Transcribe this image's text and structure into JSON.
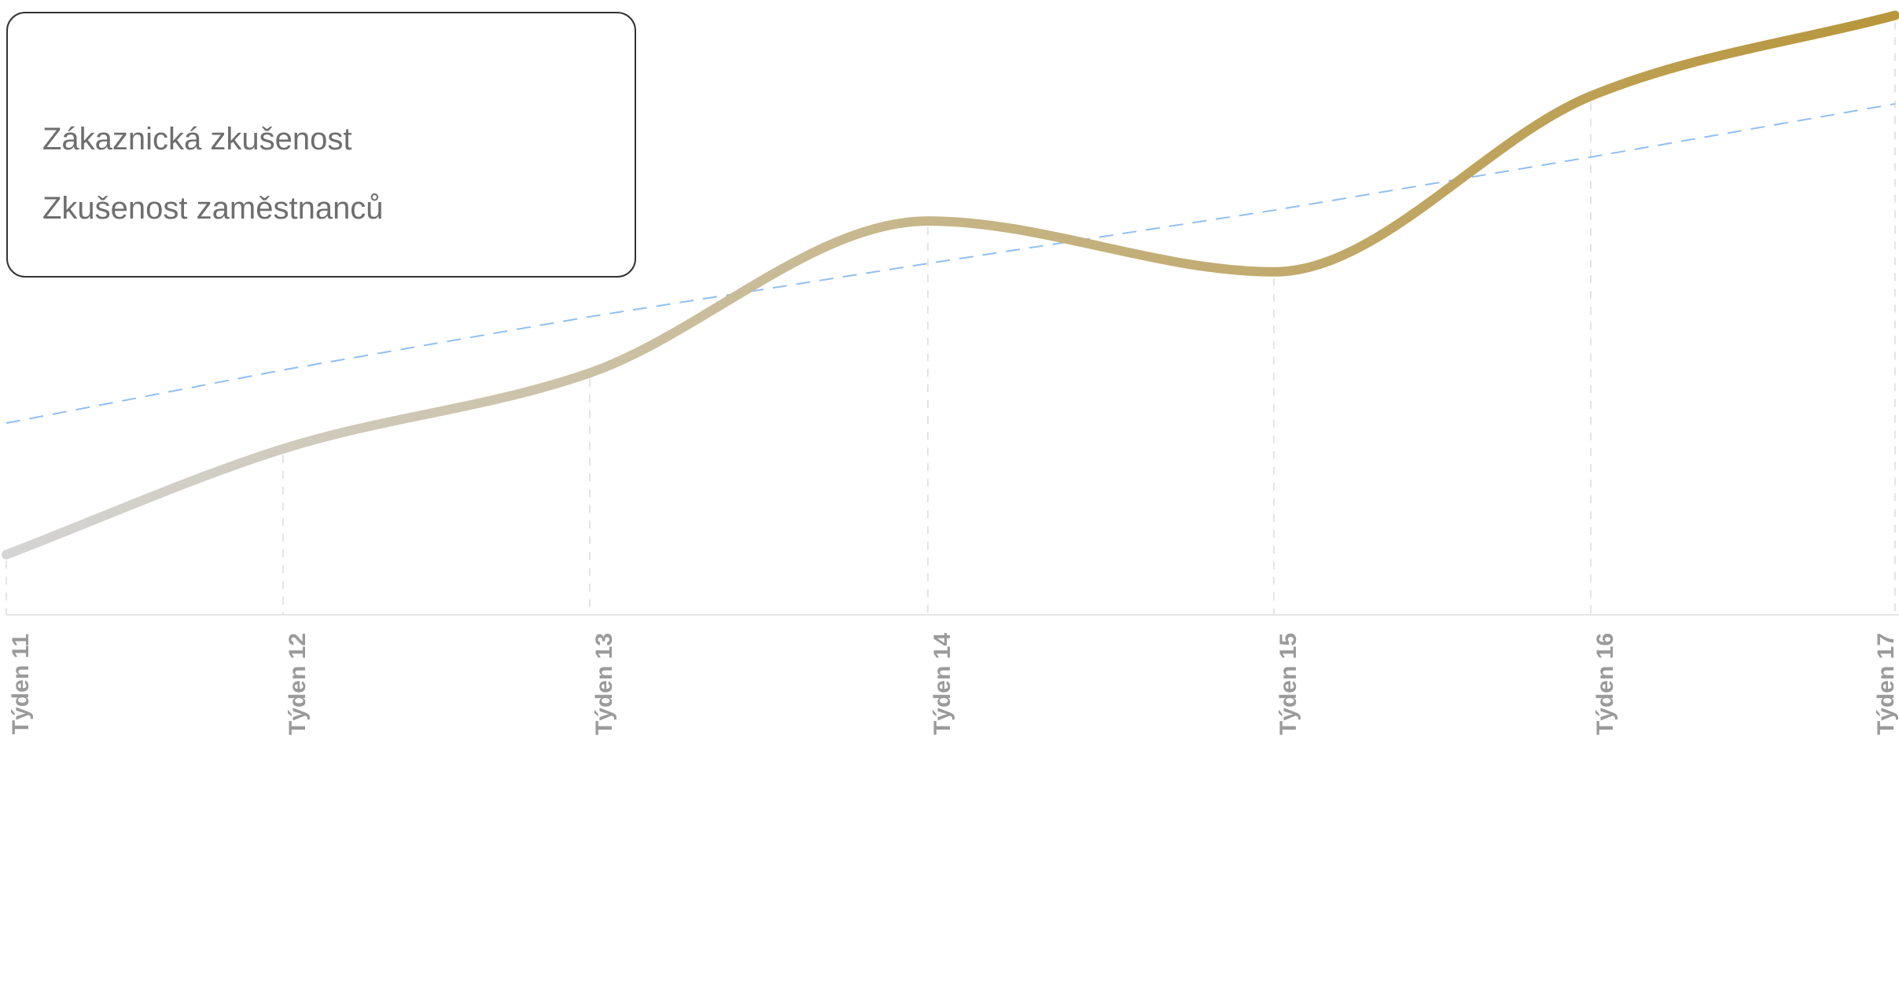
{
  "chart_data": {
    "type": "line",
    "categories": [
      "Týden 11",
      "Týden 12",
      "Týden 13",
      "Týden 14",
      "Týden 15",
      "Týden 16",
      "Týden 17"
    ],
    "ylim": [
      0,
      100
    ],
    "grid": "vertical dashed",
    "legend_position": "top-left",
    "series": [
      {
        "name": "Zákaznická zkušenost",
        "values": [
          9.8,
          27.5,
          40.2,
          65.6,
          57.1,
          86.5,
          100
        ],
        "color_start": "#d4d4d4",
        "color_end": "#b8963c",
        "style": "solid"
      },
      {
        "name": "Zkušenost zaměstnanců",
        "values": [
          31.8,
          40.7,
          49.6,
          58.5,
          67.4,
          76.3,
          85.2
        ],
        "color": "#90bff2",
        "style": "dashed"
      }
    ]
  }
}
